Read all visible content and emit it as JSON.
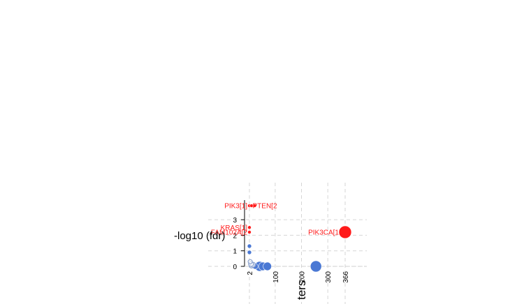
{
  "chart_data": {
    "type": "scatter",
    "title": "",
    "xlabel": "ters",
    "ylabel": "-log10 (fdr)",
    "xlim": [
      2,
      366
    ],
    "ylim": [
      0,
      3.5
    ],
    "x_ticks": [
      {
        "value": 2,
        "label": "2"
      },
      {
        "value": 100,
        "label": "100"
      },
      {
        "value": 200,
        "label": "200"
      },
      {
        "value": 300,
        "label": "300"
      },
      {
        "value": 366,
        "label": "366"
      }
    ],
    "y_ticks": [
      {
        "value": 0,
        "label": "0"
      },
      {
        "value": 1,
        "label": "1"
      },
      {
        "value": 2,
        "label": "2"
      },
      {
        "value": 3,
        "label": "3"
      }
    ],
    "grid": true,
    "colors": {
      "significant": "#ff1a1a",
      "background": "#4a78d4",
      "open": "#8da4cf",
      "grid": "#d6d6d6"
    },
    "points": [
      {
        "x": 366,
        "y": 2.2,
        "r": 9,
        "group": "significant"
      },
      {
        "x": 255,
        "y": 0.0,
        "r": 8,
        "group": "background"
      },
      {
        "x": 41,
        "y": 0.0,
        "r": 7,
        "group": "background"
      },
      {
        "x": 53,
        "y": 0.0,
        "r": 6,
        "group": "background"
      },
      {
        "x": 70,
        "y": 0.0,
        "r": 6,
        "group": "background"
      },
      {
        "x": 24,
        "y": 0.0,
        "r": 4,
        "group": "background"
      },
      {
        "x": 10,
        "y": 0.05,
        "r": 3.5,
        "group": "open"
      },
      {
        "x": 16,
        "y": 0.1,
        "r": 3.5,
        "group": "open"
      },
      {
        "x": 8,
        "y": 0.15,
        "r": 3.5,
        "group": "open"
      },
      {
        "x": 5,
        "y": 0.3,
        "r": 3,
        "group": "open"
      },
      {
        "x": 2,
        "y": 0.9,
        "r": 3,
        "group": "background"
      },
      {
        "x": 2,
        "y": 1.3,
        "r": 3,
        "group": "background"
      },
      {
        "x": 2,
        "y": 2.2,
        "r": 2.5,
        "group": "significant"
      },
      {
        "x": 2,
        "y": 2.5,
        "r": 2.5,
        "group": "significant"
      },
      {
        "x": 2,
        "y": 3.9,
        "r": 2.5,
        "group": "significant"
      },
      {
        "x": 10,
        "y": 3.9,
        "r": 2.5,
        "group": "significant"
      },
      {
        "x": 22,
        "y": 3.9,
        "r": 2.5,
        "group": "significant"
      }
    ],
    "annotations": [
      {
        "text": "PIK3CA[1",
        "x": 366,
        "y": 2.2,
        "side": "left"
      },
      {
        "text": "KRAS[1]",
        "x": 2,
        "y": 2.5,
        "side": "left"
      },
      {
        "text": "FAM102A[2",
        "x": 2,
        "y": 2.2,
        "side": "left"
      },
      {
        "text": "PIK3[1]",
        "x": 2,
        "y": 3.9,
        "side": "left"
      },
      {
        "text": "PTEN[2",
        "x": 6,
        "y": 3.9,
        "side": "right"
      }
    ]
  }
}
